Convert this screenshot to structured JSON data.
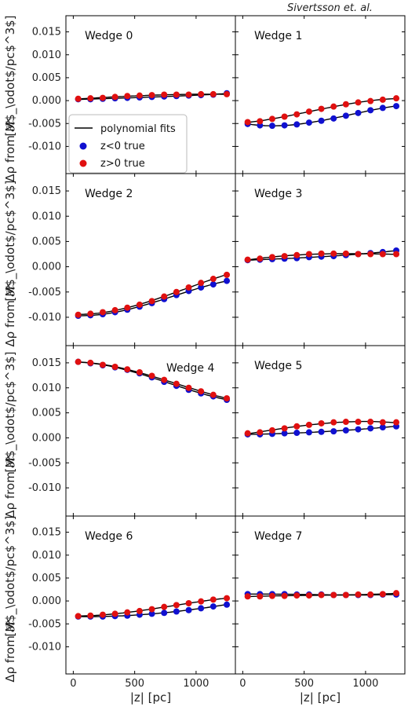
{
  "credit": "Sivertsson et. al.",
  "colors": {
    "blue": "#1010d0",
    "red": "#e01010",
    "line": "#000000"
  },
  "chart_data": {
    "type": "scatter",
    "grid": false,
    "xlabel": "|z| [pc]",
    "ylabel_top": "[M$_\\odot$/pc$^3$]",
    "ylabel_bottom": "Δρ from 𝓡",
    "xlim": [
      -60,
      1320
    ],
    "ylim": [
      -0.0125,
      0.0175
    ],
    "xticks": [
      0,
      500,
      1000
    ],
    "yticks": [
      -0.01,
      -0.005,
      0.0,
      0.005,
      0.01,
      0.015
    ],
    "legend": {
      "location": "lower-left of Wedge 0 panel",
      "entries": [
        "polynomial fits",
        "z<0 true",
        "z>0 true"
      ]
    },
    "x": [
      40,
      140,
      240,
      340,
      440,
      540,
      640,
      740,
      840,
      940,
      1040,
      1140,
      1250
    ],
    "panels": [
      {
        "label": "Wedge 0",
        "series": [
          {
            "name": "z<0 true",
            "values": [
              0.0003,
              0.0003,
              0.0004,
              0.0005,
              0.0006,
              0.0007,
              0.0008,
              0.0009,
              0.001,
              0.0011,
              0.0012,
              0.0013,
              0.0016
            ]
          },
          {
            "name": "z>0 true",
            "values": [
              0.0004,
              0.0005,
              0.0006,
              0.0008,
              0.001,
              0.0011,
              0.0012,
              0.0013,
              0.0013,
              0.0013,
              0.0014,
              0.0014,
              0.0014
            ]
          }
        ],
        "fits": [
          [
            0.0003,
            1.1e-06
          ],
          [
            0.00035,
            1.1e-06
          ]
        ]
      },
      {
        "label": "Wedge 1",
        "series": [
          {
            "name": "z<0 true",
            "values": [
              -0.0051,
              -0.0054,
              -0.0055,
              -0.0054,
              -0.0052,
              -0.0048,
              -0.0044,
              -0.0039,
              -0.0033,
              -0.0027,
              -0.0021,
              -0.0016,
              -0.0012
            ]
          },
          {
            "name": "z>0 true",
            "values": [
              -0.0047,
              -0.0045,
              -0.004,
              -0.0035,
              -0.003,
              -0.0024,
              -0.0018,
              -0.0013,
              -0.0008,
              -0.0004,
              -0.0001,
              0.0002,
              0.0005
            ]
          }
        ]
      },
      {
        "label": "Wedge 2",
        "series": [
          {
            "name": "z<0 true",
            "values": [
              -0.0097,
              -0.0096,
              -0.0094,
              -0.009,
              -0.0085,
              -0.0079,
              -0.0072,
              -0.0064,
              -0.0056,
              -0.0048,
              -0.0041,
              -0.0035,
              -0.0028
            ]
          },
          {
            "name": "z>0 true",
            "values": [
              -0.0095,
              -0.0093,
              -0.009,
              -0.0086,
              -0.0081,
              -0.0075,
              -0.0068,
              -0.0059,
              -0.005,
              -0.0041,
              -0.0032,
              -0.0024,
              -0.0016
            ]
          }
        ]
      },
      {
        "label": "Wedge 3",
        "series": [
          {
            "name": "z<0 true",
            "values": [
              0.0013,
              0.0014,
              0.0015,
              0.0016,
              0.0017,
              0.0019,
              0.002,
              0.0021,
              0.0023,
              0.0025,
              0.0027,
              0.0029,
              0.0032
            ]
          },
          {
            "name": "z>0 true",
            "values": [
              0.0014,
              0.0016,
              0.0019,
              0.0021,
              0.0023,
              0.0025,
              0.0026,
              0.0026,
              0.0026,
              0.0025,
              0.0025,
              0.0025,
              0.0025
            ]
          }
        ]
      },
      {
        "label": "Wedge 4",
        "series": [
          {
            "name": "z<0 true",
            "values": [
              0.0152,
              0.0149,
              0.0145,
              0.0141,
              0.0136,
              0.0129,
              0.0121,
              0.0112,
              0.0104,
              0.0096,
              0.0089,
              0.0083,
              0.0076
            ]
          },
          {
            "name": "z>0 true",
            "values": [
              0.0152,
              0.015,
              0.0146,
              0.0142,
              0.0137,
              0.0131,
              0.0124,
              0.0116,
              0.0108,
              0.01,
              0.0093,
              0.0086,
              0.0079
            ]
          }
        ]
      },
      {
        "label": "Wedge 5",
        "series": [
          {
            "name": "z<0 true",
            "values": [
              0.0007,
              0.0007,
              0.0008,
              0.0009,
              0.001,
              0.0011,
              0.0012,
              0.0013,
              0.0015,
              0.0017,
              0.0019,
              0.0021,
              0.0023
            ]
          },
          {
            "name": "z>0 true",
            "values": [
              0.0009,
              0.0011,
              0.0015,
              0.0019,
              0.0023,
              0.0026,
              0.0029,
              0.0031,
              0.0032,
              0.0032,
              0.0032,
              0.0031,
              0.0031
            ]
          }
        ]
      },
      {
        "label": "Wedge 6",
        "series": [
          {
            "name": "z<0 true",
            "values": [
              -0.0034,
              -0.0034,
              -0.0034,
              -0.0033,
              -0.0032,
              -0.003,
              -0.0028,
              -0.0026,
              -0.0023,
              -0.002,
              -0.0016,
              -0.0012,
              -0.0008
            ]
          },
          {
            "name": "z>0 true",
            "values": [
              -0.0033,
              -0.0032,
              -0.003,
              -0.0028,
              -0.0025,
              -0.0022,
              -0.0018,
              -0.0013,
              -0.0009,
              -0.0005,
              -0.0001,
              0.0003,
              0.0006
            ]
          }
        ]
      },
      {
        "label": "Wedge 7",
        "series": [
          {
            "name": "z<0 true",
            "values": [
              0.0015,
              0.0015,
              0.0015,
              0.0015,
              0.0014,
              0.0014,
              0.0014,
              0.0013,
              0.0013,
              0.0013,
              0.0013,
              0.0014,
              0.0014
            ]
          },
          {
            "name": "z>0 true",
            "values": [
              0.001,
              0.001,
              0.0011,
              0.0011,
              0.0012,
              0.0012,
              0.0013,
              0.0013,
              0.0013,
              0.0014,
              0.0014,
              0.0015,
              0.0017
            ]
          }
        ]
      }
    ]
  }
}
